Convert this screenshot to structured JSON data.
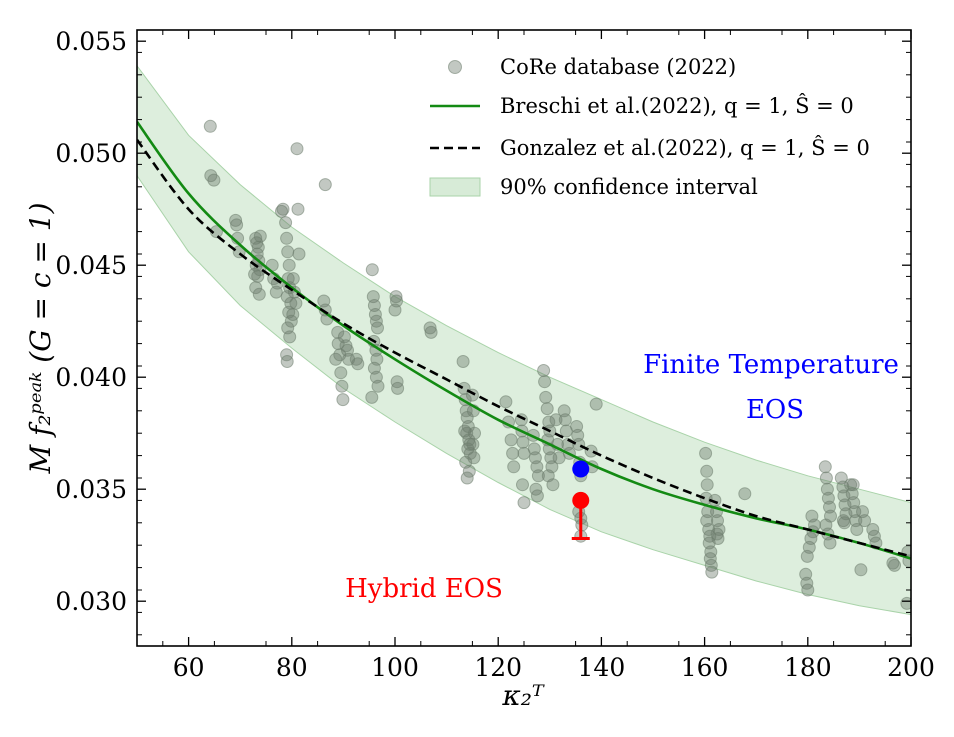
{
  "chart_data": {
    "type": "scatter",
    "title": "",
    "xlabel": "κ₂ᵀ",
    "ylabel": "M f₂ᵖᵉᵃᵏ (G = c = 1)",
    "xlim": [
      50,
      200
    ],
    "ylim": [
      0.028,
      0.0555
    ],
    "x_ticks": [
      "60",
      "80",
      "100",
      "120",
      "140",
      "160",
      "180",
      "200"
    ],
    "x_tick_values": [
      60,
      80,
      100,
      120,
      140,
      160,
      180,
      200
    ],
    "y_ticks": [
      "0.030",
      "0.035",
      "0.040",
      "0.045",
      "0.050",
      "0.055"
    ],
    "y_tick_values": [
      0.03,
      0.035,
      0.04,
      0.045,
      0.05,
      0.055
    ],
    "grid": false,
    "legend_position": "top-right",
    "legend": [
      {
        "key": "core",
        "label": "CoRe database (2022)"
      },
      {
        "key": "breschi",
        "label": "Breschi et al.(2022), q = 1, Ŝ = 0"
      },
      {
        "key": "gonzalez",
        "label": "Gonzalez et al.(2022), q = 1, Ŝ = 0"
      },
      {
        "key": "band",
        "label": "90% confidence interval"
      }
    ],
    "colors": {
      "core": "#6e7d6e",
      "breschi": "#138a13",
      "gonzalez": "#000000",
      "band_fill": "#d7ebd7",
      "band_edge": "#a9d3a9",
      "hybrid": "#ff0000",
      "finite_temp": "#0000ff"
    },
    "series": [
      {
        "name": "CoRe database (2022)",
        "kind": "scatter",
        "points": [
          [
            64.2,
            0.0512
          ],
          [
            64.3,
            0.049
          ],
          [
            64.9,
            0.0488
          ],
          [
            65.4,
            0.0465
          ],
          [
            69.1,
            0.047
          ],
          [
            69.3,
            0.0468
          ],
          [
            69.5,
            0.0462
          ],
          [
            69.8,
            0.0456
          ],
          [
            73.0,
            0.0462
          ],
          [
            73.2,
            0.046
          ],
          [
            73.5,
            0.0458
          ],
          [
            73.3,
            0.0455
          ],
          [
            73.6,
            0.0452
          ],
          [
            73.1,
            0.045
          ],
          [
            73.8,
            0.0448
          ],
          [
            73.4,
            0.0445
          ],
          [
            73.0,
            0.044
          ],
          [
            73.7,
            0.0437
          ],
          [
            72.8,
            0.0446
          ],
          [
            73.9,
            0.0463
          ],
          [
            76.2,
            0.045
          ],
          [
            76.5,
            0.0444
          ],
          [
            77.0,
            0.0438
          ],
          [
            77.2,
            0.0442
          ],
          [
            78.0,
            0.0474
          ],
          [
            78.3,
            0.0475
          ],
          [
            78.8,
            0.0469
          ],
          [
            79.0,
            0.0462
          ],
          [
            79.2,
            0.0456
          ],
          [
            79.5,
            0.045
          ],
          [
            79.3,
            0.0444
          ],
          [
            79.6,
            0.044
          ],
          [
            79.1,
            0.0436
          ],
          [
            79.8,
            0.0433
          ],
          [
            79.4,
            0.0429
          ],
          [
            79.9,
            0.0425
          ],
          [
            79.2,
            0.0422
          ],
          [
            79.6,
            0.0418
          ],
          [
            79.0,
            0.041
          ],
          [
            79.1,
            0.0407
          ],
          [
            80.3,
            0.0444
          ],
          [
            80.5,
            0.0438
          ],
          [
            80.8,
            0.0433
          ],
          [
            80.2,
            0.0428
          ],
          [
            81.0,
            0.0502
          ],
          [
            81.2,
            0.0475
          ],
          [
            81.4,
            0.0455
          ],
          [
            86.5,
            0.0486
          ],
          [
            86.2,
            0.0434
          ],
          [
            86.5,
            0.043
          ],
          [
            86.8,
            0.0426
          ],
          [
            88.5,
            0.0408
          ],
          [
            88.9,
            0.042
          ],
          [
            89.0,
            0.0415
          ],
          [
            89.3,
            0.041
          ],
          [
            89.5,
            0.0402
          ],
          [
            89.7,
            0.0396
          ],
          [
            89.9,
            0.039
          ],
          [
            90.2,
            0.0418
          ],
          [
            90.5,
            0.0414
          ],
          [
            90.8,
            0.0412
          ],
          [
            91.0,
            0.0408
          ],
          [
            92.5,
            0.0408
          ],
          [
            92.8,
            0.0406
          ],
          [
            95.6,
            0.0448
          ],
          [
            95.8,
            0.0436
          ],
          [
            96.0,
            0.0432
          ],
          [
            96.2,
            0.0428
          ],
          [
            96.4,
            0.0425
          ],
          [
            96.6,
            0.0422
          ],
          [
            95.9,
            0.0416
          ],
          [
            96.3,
            0.0412
          ],
          [
            96.5,
            0.0408
          ],
          [
            96.0,
            0.0404
          ],
          [
            96.4,
            0.04
          ],
          [
            96.7,
            0.0396
          ],
          [
            95.5,
            0.0391
          ],
          [
            100.2,
            0.0436
          ],
          [
            100.3,
            0.0434
          ],
          [
            100.0,
            0.043
          ],
          [
            100.4,
            0.0398
          ],
          [
            100.5,
            0.0395
          ],
          [
            106.8,
            0.0422
          ],
          [
            107.0,
            0.042
          ],
          [
            113.2,
            0.0407
          ],
          [
            113.4,
            0.0395
          ],
          [
            113.6,
            0.039
          ],
          [
            113.8,
            0.0385
          ],
          [
            114.0,
            0.0382
          ],
          [
            114.2,
            0.0378
          ],
          [
            113.9,
            0.0375
          ],
          [
            114.3,
            0.0372
          ],
          [
            114.5,
            0.037
          ],
          [
            114.1,
            0.0368
          ],
          [
            114.6,
            0.0366
          ],
          [
            113.7,
            0.0362
          ],
          [
            114.4,
            0.0358
          ],
          [
            114.0,
            0.0355
          ],
          [
            113.5,
            0.0376
          ],
          [
            115.0,
            0.0392
          ],
          [
            115.2,
            0.0385
          ],
          [
            115.4,
            0.0375
          ],
          [
            115.1,
            0.037
          ],
          [
            115.3,
            0.0364
          ],
          [
            121.5,
            0.0389
          ],
          [
            122.0,
            0.038
          ],
          [
            122.5,
            0.0372
          ],
          [
            122.8,
            0.0366
          ],
          [
            123.0,
            0.036
          ],
          [
            124.5,
            0.0381
          ],
          [
            124.6,
            0.0376
          ],
          [
            124.8,
            0.0371
          ],
          [
            125.0,
            0.0366
          ],
          [
            124.7,
            0.0352
          ],
          [
            125.0,
            0.0344
          ],
          [
            126.8,
            0.0374
          ],
          [
            127.0,
            0.0368
          ],
          [
            127.2,
            0.0364
          ],
          [
            127.5,
            0.036
          ],
          [
            127.8,
            0.0356
          ],
          [
            127.3,
            0.035
          ],
          [
            127.6,
            0.0347
          ],
          [
            128.8,
            0.0403
          ],
          [
            129.0,
            0.0398
          ],
          [
            129.2,
            0.0391
          ],
          [
            129.5,
            0.0386
          ],
          [
            129.8,
            0.038
          ],
          [
            130.0,
            0.0376
          ],
          [
            129.6,
            0.0372
          ],
          [
            129.9,
            0.0368
          ],
          [
            130.2,
            0.0364
          ],
          [
            130.4,
            0.036
          ],
          [
            129.7,
            0.0356
          ],
          [
            130.6,
            0.0352
          ],
          [
            131.2,
            0.0381
          ],
          [
            131.5,
            0.037
          ],
          [
            131.8,
            0.0364
          ],
          [
            132.8,
            0.0385
          ],
          [
            133.0,
            0.0381
          ],
          [
            133.2,
            0.0376
          ],
          [
            133.5,
            0.037
          ],
          [
            133.8,
            0.0366
          ],
          [
            135.2,
            0.0378
          ],
          [
            135.4,
            0.0374
          ],
          [
            135.6,
            0.037
          ],
          [
            135.8,
            0.0362
          ],
          [
            136.0,
            0.0356
          ],
          [
            135.6,
            0.034
          ],
          [
            136.0,
            0.0337
          ],
          [
            136.2,
            0.0334
          ],
          [
            136.0,
            0.0329
          ],
          [
            138.0,
            0.0367
          ],
          [
            138.2,
            0.036
          ],
          [
            139.0,
            0.0388
          ],
          [
            160.2,
            0.0366
          ],
          [
            160.4,
            0.0358
          ],
          [
            160.5,
            0.0352
          ],
          [
            160.3,
            0.0346
          ],
          [
            160.6,
            0.034
          ],
          [
            160.4,
            0.0336
          ],
          [
            160.8,
            0.0332
          ],
          [
            161.0,
            0.0329
          ],
          [
            160.9,
            0.0326
          ],
          [
            161.2,
            0.0322
          ],
          [
            161.1,
            0.0319
          ],
          [
            161.3,
            0.0316
          ],
          [
            161.4,
            0.0313
          ],
          [
            162.0,
            0.0345
          ],
          [
            162.3,
            0.034
          ],
          [
            162.5,
            0.0336
          ],
          [
            162.8,
            0.0332
          ],
          [
            162.6,
            0.0328
          ],
          [
            162.4,
            0.033
          ],
          [
            167.8,
            0.0348
          ],
          [
            179.6,
            0.0312
          ],
          [
            179.8,
            0.0308
          ],
          [
            180.0,
            0.0305
          ],
          [
            179.9,
            0.032
          ],
          [
            180.3,
            0.0324
          ],
          [
            180.6,
            0.0328
          ],
          [
            181.0,
            0.0331
          ],
          [
            181.3,
            0.0334
          ],
          [
            180.8,
            0.0338
          ],
          [
            183.4,
            0.036
          ],
          [
            183.6,
            0.0355
          ],
          [
            183.8,
            0.035
          ],
          [
            184.0,
            0.0346
          ],
          [
            184.2,
            0.0342
          ],
          [
            184.4,
            0.0338
          ],
          [
            183.5,
            0.0334
          ],
          [
            183.9,
            0.033
          ],
          [
            184.3,
            0.0326
          ],
          [
            186.5,
            0.0355
          ],
          [
            186.8,
            0.0351
          ],
          [
            187.0,
            0.0347
          ],
          [
            187.2,
            0.0343
          ],
          [
            187.4,
            0.0339
          ],
          [
            187.1,
            0.0335
          ],
          [
            186.9,
            0.0336
          ],
          [
            188.3,
            0.0352
          ],
          [
            188.6,
            0.0348
          ],
          [
            188.9,
            0.0344
          ],
          [
            189.1,
            0.034
          ],
          [
            189.3,
            0.0336
          ],
          [
            189.5,
            0.0332
          ],
          [
            188.8,
            0.0352
          ],
          [
            190.6,
            0.034
          ],
          [
            191.0,
            0.0336
          ],
          [
            190.3,
            0.0314
          ],
          [
            192.6,
            0.0332
          ],
          [
            192.9,
            0.0329
          ],
          [
            193.2,
            0.0326
          ],
          [
            196.5,
            0.0317
          ],
          [
            196.8,
            0.0316
          ],
          [
            199.4,
            0.0322
          ],
          [
            199.6,
            0.0318
          ],
          [
            199.2,
            0.0299
          ]
        ]
      },
      {
        "name": "Breschi et al.(2022), q = 1, Ŝ = 0",
        "kind": "line",
        "x": [
          50,
          60,
          70,
          80,
          90,
          100,
          110,
          120,
          130,
          140,
          150,
          160,
          170,
          180,
          190,
          200
        ],
        "y": [
          0.0514,
          0.0482,
          0.0459,
          0.044,
          0.0423,
          0.0408,
          0.0394,
          0.0381,
          0.037,
          0.0359,
          0.035,
          0.0343,
          0.0337,
          0.0332,
          0.0326,
          0.0319
        ]
      },
      {
        "name": "Gonzalez et al.(2022), q = 1, Ŝ = 0",
        "kind": "line",
        "style": "dashed",
        "x": [
          50,
          60,
          70,
          80,
          90,
          100,
          110,
          120,
          130,
          140,
          150,
          160,
          170,
          180,
          190,
          200
        ],
        "y": [
          0.0506,
          0.0475,
          0.0455,
          0.0439,
          0.0424,
          0.0411,
          0.0399,
          0.0387,
          0.0376,
          0.0365,
          0.0355,
          0.0346,
          0.0338,
          0.0332,
          0.0326,
          0.032
        ]
      },
      {
        "name": "90% confidence interval",
        "kind": "band",
        "x": [
          50,
          60,
          70,
          80,
          90,
          100,
          110,
          120,
          130,
          140,
          150,
          160,
          170,
          180,
          190,
          200
        ],
        "upper": [
          0.0539,
          0.0508,
          0.0486,
          0.0467,
          0.0451,
          0.0436,
          0.0423,
          0.0411,
          0.04,
          0.039,
          0.038,
          0.0371,
          0.0363,
          0.0356,
          0.035,
          0.0344
        ],
        "lower": [
          0.049,
          0.0456,
          0.0432,
          0.0413,
          0.0395,
          0.038,
          0.0366,
          0.0353,
          0.0341,
          0.0331,
          0.0323,
          0.0316,
          0.0309,
          0.0303,
          0.0298,
          0.0294
        ]
      }
    ],
    "highlight_points": [
      {
        "name": "finite-temperature-point",
        "x": 136.0,
        "y": 0.0359,
        "color_key": "finite_temp"
      },
      {
        "name": "hybrid-point",
        "x": 136.0,
        "y": 0.0345,
        "err_low": 0.0328,
        "color_key": "hybrid"
      }
    ],
    "annotations": {
      "finite_temp_line1": "Finite Temperature",
      "finite_temp_line2": "EOS",
      "hybrid": "Hybrid EOS"
    }
  }
}
